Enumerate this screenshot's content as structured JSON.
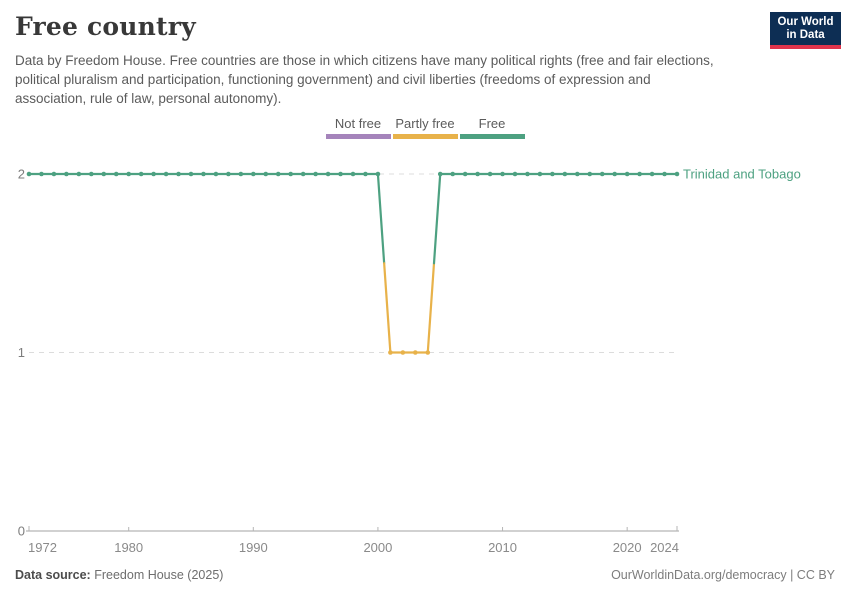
{
  "header": {
    "title": "Free country",
    "subtitle": "Data by Freedom House. Free countries are those in which citizens have many political rights (free and fair elections, political pluralism and participation, functioning government) and civil liberties (freedoms of expression and association, rule of law, personal autonomy)."
  },
  "logo": {
    "line1": "Our World",
    "line2": "in Data",
    "bg_color": "#0d2e54",
    "accent_color": "#e0344c"
  },
  "legend": {
    "items": [
      {
        "label": "Not free",
        "color": "#a584bb",
        "value": 0
      },
      {
        "label": "Partly free",
        "color": "#e8b24a",
        "value": 1
      },
      {
        "label": "Free",
        "color": "#4da181",
        "value": 2
      }
    ]
  },
  "chart_data": {
    "type": "line",
    "title": "Free country",
    "entity": "Trinidad and Tobago",
    "x": [
      1972,
      1973,
      1974,
      1975,
      1976,
      1977,
      1978,
      1979,
      1980,
      1981,
      1982,
      1983,
      1984,
      1985,
      1986,
      1987,
      1988,
      1989,
      1990,
      1991,
      1992,
      1993,
      1994,
      1995,
      1996,
      1997,
      1998,
      1999,
      2000,
      2001,
      2002,
      2003,
      2004,
      2005,
      2006,
      2007,
      2008,
      2009,
      2010,
      2011,
      2012,
      2013,
      2014,
      2015,
      2016,
      2017,
      2018,
      2019,
      2020,
      2021,
      2022,
      2023,
      2024
    ],
    "values": [
      2,
      2,
      2,
      2,
      2,
      2,
      2,
      2,
      2,
      2,
      2,
      2,
      2,
      2,
      2,
      2,
      2,
      2,
      2,
      2,
      2,
      2,
      2,
      2,
      2,
      2,
      2,
      2,
      2,
      1,
      1,
      1,
      1,
      2,
      2,
      2,
      2,
      2,
      2,
      2,
      2,
      2,
      2,
      2,
      2,
      2,
      2,
      2,
      2,
      2,
      2,
      2,
      2
    ],
    "value_labels": {
      "0": "Not free",
      "1": "Partly free",
      "2": "Free"
    },
    "value_colors": {
      "0": "#a584bb",
      "1": "#e8b24a",
      "2": "#4da181"
    },
    "xlim": [
      1972,
      2024
    ],
    "ylim": [
      0,
      2
    ],
    "x_ticks": [
      1972,
      1980,
      1990,
      2000,
      2010,
      2020,
      2024
    ],
    "y_ticks": [
      0,
      1,
      2
    ],
    "grid": "dashed-horizontal",
    "legend_position": "top-center",
    "xlabel": "",
    "ylabel": ""
  },
  "footer": {
    "source_label": "Data source:",
    "source_value": " Freedom House (2025)",
    "right_text": "OurWorldinData.org/democracy | CC BY"
  }
}
